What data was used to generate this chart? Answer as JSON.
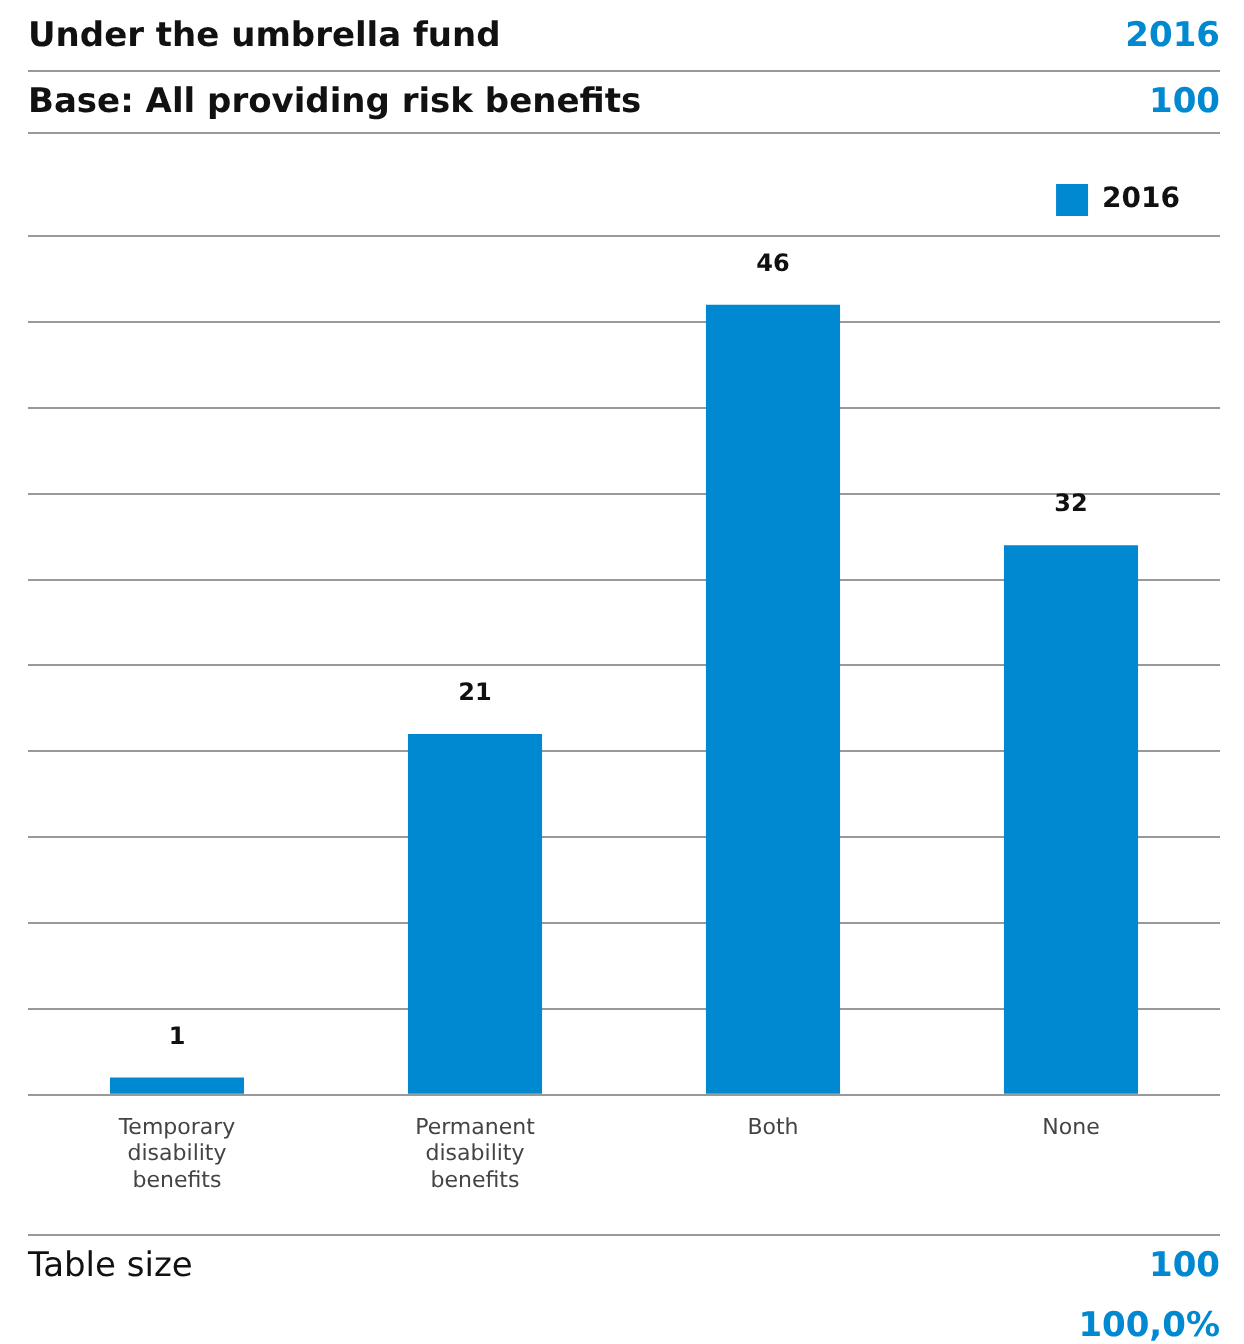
{
  "chart_data": {
    "type": "bar",
    "title": "Under the umbrella fund",
    "subtitle": "Base: All providing risk benefits",
    "categories": [
      "Temporary disability benefits",
      "Permanent disability benefits",
      "Both",
      "None"
    ],
    "series": [
      {
        "name": "2016",
        "color": "#0088d1",
        "values": [
          1,
          21,
          46,
          32
        ]
      }
    ],
    "ylim": [
      0,
      50
    ],
    "yticks": [
      {
        "value": 0,
        "label": null
      },
      {
        "value": 5,
        "label": null
      },
      {
        "value": 10,
        "label": null
      },
      {
        "value": 15,
        "label": null
      },
      {
        "value": 20,
        "label": null
      },
      {
        "value": 25,
        "label": null
      },
      {
        "value": 30,
        "label": null
      },
      {
        "value": 35,
        "label": null
      },
      {
        "value": 40,
        "label": null
      },
      {
        "value": 45,
        "label": null
      },
      {
        "value": 50,
        "label": null
      }
    ],
    "tick_labels": "x",
    "grid": "y",
    "legend": "top right",
    "data_labels": true,
    "annotations": [
      "2016",
      "100",
      "Table size",
      "100",
      "100,0%"
    ]
  }
}
